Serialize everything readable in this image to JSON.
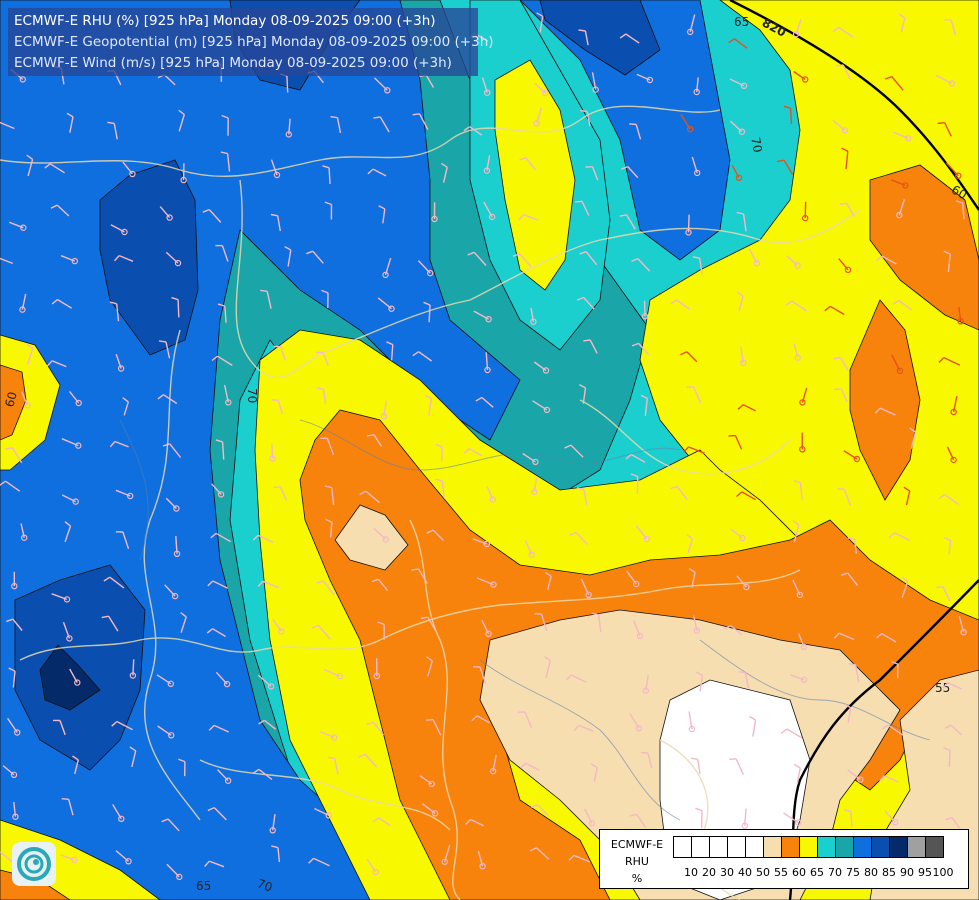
{
  "title": {
    "line1": "ECMWF-E RHU (%) [925 hPa] Monday 08-09-2025 09:00 (+3h)",
    "line2": "ECMWF-E Geopotential (m) [925 hPa] Monday 08-09-2025 09:00 (+3h)",
    "line3": "ECMWF-E Wind (m/s) [925 hPa] Monday 08-09-2025 09:00 (+3h)"
  },
  "contour_labels": {
    "rhu_65_top": "65",
    "rhu_70_right": "70",
    "rhu_60_right": "60",
    "rhu_60_left": "60",
    "rhu_70_center": "70",
    "rhu_55_right": "55",
    "rhu_65_bottom": "65",
    "rhu_70_bottom": "70",
    "geopotential_820": "820"
  },
  "legend": {
    "title_lines": [
      "ECMWF-E",
      "RHU",
      "%"
    ],
    "ticks": [
      "10",
      "20",
      "30",
      "40",
      "50",
      "55",
      "60",
      "65",
      "70",
      "75",
      "80",
      "85",
      "90",
      "95",
      "100"
    ],
    "colors": [
      "#ffffff",
      "#ffffff",
      "#ffffff",
      "#ffffff",
      "#ffffff",
      "#f6deb0",
      "#f7830c",
      "#f8f800",
      "#1ccfcf",
      "#1aa6a8",
      "#0f6fdf",
      "#0a4fb0",
      "#052a6a",
      "#a0a0a0",
      "#555555"
    ]
  },
  "colors": {
    "rhu_lt50": "#ffffff",
    "rhu_55_60": "#f6deb0",
    "rhu_60_65": "#f7830c",
    "rhu_65_70": "#f8f800",
    "rhu_70_75": "#1ccfcf",
    "rhu_75_80": "#1aa6a8",
    "rhu_80_85": "#0f6fdf",
    "rhu_85_90": "#0a4fb0",
    "rhu_90_95": "#052a6a",
    "wind_barb_light": "#f4b8c6",
    "wind_barb_strong": "#e8501a",
    "geopotential_line": "#000000",
    "title_bg": "#2846a0"
  },
  "logo": {
    "icon": "ecmwf-swirl-logo"
  }
}
